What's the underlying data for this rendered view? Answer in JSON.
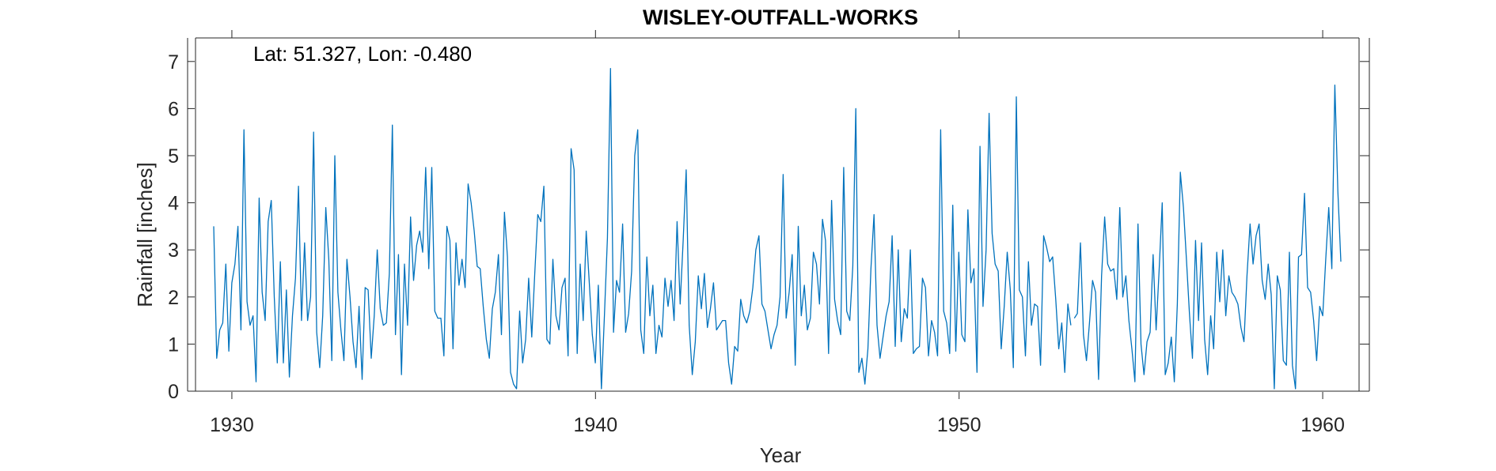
{
  "chart_data": {
    "type": "line",
    "title": "WISLEY-OUTFALL-WORKS",
    "annotation": "Lat: 51.327, Lon: -0.480",
    "xlabel": "Year",
    "ylabel": "Rainfall [inches]",
    "xlim": [
      1929,
      1961
    ],
    "ylim": [
      0,
      7.5
    ],
    "xticks": [
      1930,
      1940,
      1950,
      1960
    ],
    "yticks": [
      0,
      1,
      2,
      3,
      4,
      5,
      6,
      7
    ],
    "grid": false,
    "line_color": "#0072BD",
    "series": [
      {
        "segments": [
          {
            "start_year": 1929.5,
            "step": 0.0833,
            "values": [
              3.5,
              0.7,
              1.3,
              1.45,
              2.7,
              0.85,
              2.3,
              2.7,
              3.5,
              1.3,
              5.55,
              1.9,
              1.4,
              1.6,
              0.2,
              4.1,
              2.1,
              1.5,
              3.6,
              4.05,
              2.0,
              0.6,
              2.75,
              0.6,
              2.15,
              0.3,
              1.6,
              2.4,
              4.35,
              1.5,
              3.15,
              1.5,
              2.0,
              5.5,
              1.25,
              0.5,
              1.6,
              3.9,
              2.8,
              0.65,
              5.0,
              2.1,
              1.3,
              0.65,
              2.8,
              2.0,
              1.05,
              0.5,
              1.8,
              0.25,
              2.2,
              2.15,
              0.7,
              1.6,
              3.0,
              1.75,
              1.4,
              1.45,
              2.5,
              5.65,
              1.2,
              2.9,
              0.35,
              2.7,
              1.4,
              3.7,
              2.35,
              3.1,
              3.4,
              2.95,
              4.75,
              2.6,
              4.75,
              1.7,
              1.55,
              1.55,
              0.75,
              3.5,
              3.2,
              0.9,
              3.15,
              2.25,
              2.8,
              2.2,
              4.4,
              4.0,
              3.4,
              2.65,
              2.6,
              1.8,
              1.1,
              0.7,
              1.75,
              2.1,
              2.9,
              1.2,
              3.8,
              2.85,
              0.4,
              0.15,
              0.05,
              1.7,
              0.6,
              1.1,
              2.4,
              1.15,
              2.5,
              3.75,
              3.6,
              4.35,
              1.1,
              1.0,
              2.8,
              1.6,
              1.3,
              2.2,
              2.4,
              0.75,
              5.15,
              4.7,
              0.8,
              2.7,
              1.5,
              3.4,
              2.3,
              1.2,
              0.6,
              2.25,
              0.05,
              1.6,
              3.25,
              6.85,
              1.25,
              2.35,
              2.1,
              3.55,
              1.25,
              1.65,
              2.55,
              5.0,
              5.55,
              1.3,
              0.8,
              2.85,
              1.6,
              2.25,
              0.8,
              1.4,
              1.15,
              2.4,
              1.8,
              2.35,
              1.5,
              3.6,
              1.85,
              3.2,
              4.7,
              1.4,
              0.35,
              1.05,
              2.45,
              1.75,
              2.5,
              1.35,
              1.75,
              2.3,
              1.3,
              1.4,
              1.5,
              1.5,
              0.6,
              0.15,
              0.95,
              0.85,
              1.95,
              1.6,
              1.45,
              1.7,
              2.2,
              3.0,
              3.3,
              1.85,
              1.7,
              1.3,
              0.9,
              1.2,
              1.4,
              2.0,
              4.6,
              1.55,
              2.1,
              2.9,
              0.55,
              3.5,
              1.6,
              2.25,
              1.3,
              1.55,
              2.95,
              2.7,
              1.85,
              3.65,
              3.2,
              0.8,
              4.05,
              1.95,
              1.5,
              1.2,
              4.75,
              1.7,
              1.5,
              2.65,
              6.0,
              0.4,
              0.7,
              0.15,
              0.9,
              2.6,
              3.75,
              1.4,
              0.7,
              1.15,
              1.6,
              1.9,
              3.3,
              0.95,
              3.0,
              1.05,
              1.75,
              1.55,
              3.0,
              0.8,
              0.9,
              0.95,
              2.4,
              2.2,
              0.75,
              1.5,
              1.25,
              0.75,
              5.55,
              1.7,
              1.45,
              0.8,
              3.95,
              0.85,
              2.95,
              1.2,
              1.05,
              3.85,
              2.3,
              2.6,
              0.4,
              5.2,
              1.8,
              3.0,
              5.9,
              3.35,
              2.7,
              2.55,
              0.9,
              1.8,
              2.95,
              2.15,
              0.5,
              6.25,
              2.15,
              2.0,
              0.75,
              2.75,
              1.4,
              1.85,
              1.8,
              0.55,
              3.3,
              3.05,
              2.75,
              2.85,
              1.95,
              0.9,
              1.45,
              0.4,
              1.85,
              1.4
            ]
          },
          {
            "start_year": 1953.17,
            "step": 0.0833,
            "values": [
              1.55,
              1.65,
              3.15,
              1.2,
              0.65,
              1.45,
              2.35,
              2.1,
              0.25,
              2.45,
              3.7,
              2.7,
              2.55,
              2.6,
              1.95,
              3.9,
              2.0,
              2.45,
              1.5,
              0.9,
              0.2,
              3.55,
              1.0,
              0.35,
              1.05,
              1.25,
              2.9,
              1.3,
              2.6,
              4.0,
              0.35,
              0.6,
              1.15,
              0.2,
              1.85,
              4.65,
              3.9,
              2.8,
              1.65,
              0.7,
              3.2,
              1.5,
              3.15,
              1.1,
              0.35,
              1.6,
              0.9,
              2.95,
              1.9,
              3.0,
              1.6,
              2.45,
              2.1,
              2.0,
              1.85,
              1.35,
              1.05,
              2.45,
              3.55,
              2.7,
              3.3,
              3.55,
              2.35,
              1.95,
              2.7,
              2.05,
              0.05,
              2.45,
              2.15,
              0.65,
              0.55,
              2.95,
              0.55,
              0.05,
              2.85,
              2.9,
              4.2,
              2.2,
              2.1,
              1.5,
              0.65,
              1.8,
              1.6,
              2.8,
              3.9,
              2.6,
              6.5,
              4.25,
              2.75
            ]
          }
        ]
      }
    ]
  }
}
